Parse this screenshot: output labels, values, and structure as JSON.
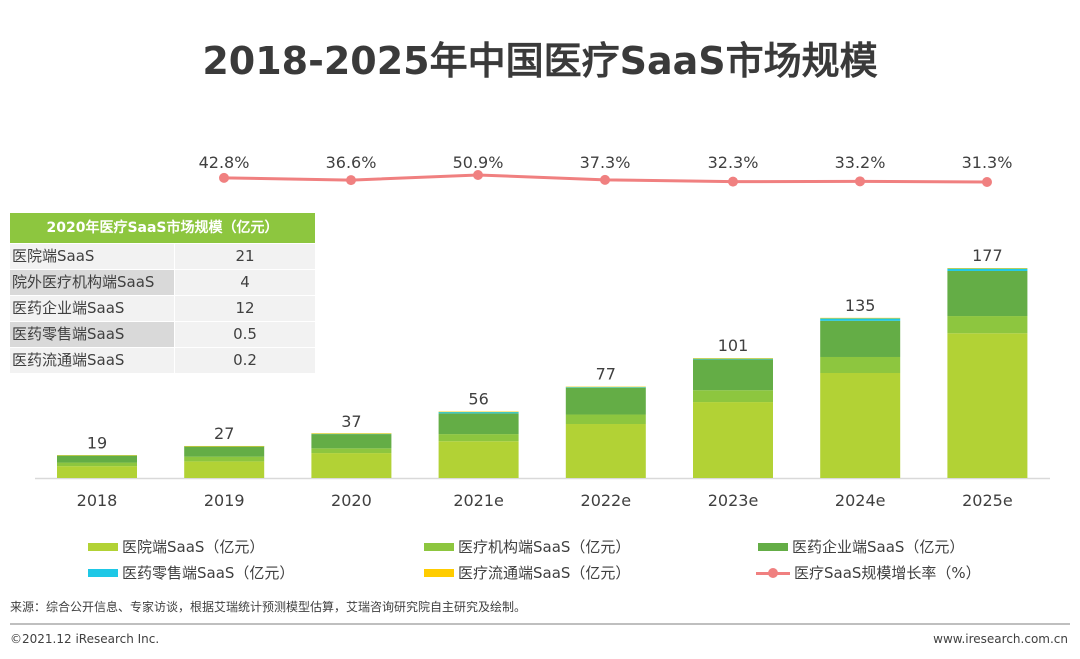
{
  "page": {
    "title": "2018-2025年中国医疗SaaS市场规模",
    "source": "来源：综合公开信息、专家访谈，根据艾瑞统计预测模型估算，艾瑞咨询研究院自主研究及绘制。",
    "copyright": "©2021.12 iResearch Inc.",
    "website": "www.iresearch.com.cn"
  },
  "inset_table": {
    "header": "2020年医疗SaaS市场规模（亿元）",
    "rows": [
      {
        "label": "医院端SaaS",
        "value": "21"
      },
      {
        "label": "院外医疗机构端SaaS",
        "value": "4"
      },
      {
        "label": "医药企业端SaaS",
        "value": "12"
      },
      {
        "label": "医药零售端SaaS",
        "value": "0.5"
      },
      {
        "label": "医药流通端SaaS",
        "value": "0.2"
      }
    ]
  },
  "chart_data": {
    "type": "bar",
    "stacked": true,
    "title": "2018-2025年中国医疗SaaS市场规模",
    "xlabel": "",
    "ylabel": "",
    "categories": [
      "2018",
      "2019",
      "2020",
      "2021e",
      "2022e",
      "2023e",
      "2024e",
      "2025e"
    ],
    "totals": [
      19,
      27,
      37,
      56,
      77,
      101,
      135,
      177
    ],
    "series": [
      {
        "name": "医院端SaaS（亿元）",
        "color": "#b2d235",
        "values": [
          10,
          14,
          21,
          31,
          45.5,
          64,
          88.5,
          122
        ]
      },
      {
        "name": "医疗机构端SaaS（亿元）",
        "color": "#8dc63f",
        "values": [
          3,
          4,
          4,
          6,
          8,
          10,
          13.5,
          14.5
        ]
      },
      {
        "name": "医药企业端SaaS（亿元）",
        "color": "#64ad46",
        "values": [
          6,
          8.5,
          12,
          17.5,
          22.5,
          26,
          30.5,
          38
        ]
      },
      {
        "name": "医药零售端SaaS（亿元）",
        "color": "#1ec8e6",
        "values": [
          0.2,
          0.4,
          0.5,
          1.2,
          0.8,
          0.8,
          2,
          2
        ]
      },
      {
        "name": "医疗流通端SaaS（亿元）",
        "color": "#ffcc00",
        "values": [
          0.1,
          0.1,
          0.2,
          0.3,
          0.2,
          0.2,
          0.5,
          0.5
        ]
      }
    ],
    "line_series": {
      "name": "医疗SaaS规模增长率（%）",
      "color": "#f08080",
      "x": [
        "2019",
        "2020",
        "2021e",
        "2022e",
        "2023e",
        "2024e",
        "2025e"
      ],
      "values": [
        42.8,
        36.6,
        50.9,
        37.3,
        32.3,
        33.2,
        31.3
      ],
      "labels": [
        "42.8%",
        "36.6%",
        "50.9%",
        "37.3%",
        "32.3%",
        "33.2%",
        "31.3%"
      ]
    },
    "ylim": [
      0,
      180
    ],
    "grid": false,
    "legend_position": "bottom"
  }
}
